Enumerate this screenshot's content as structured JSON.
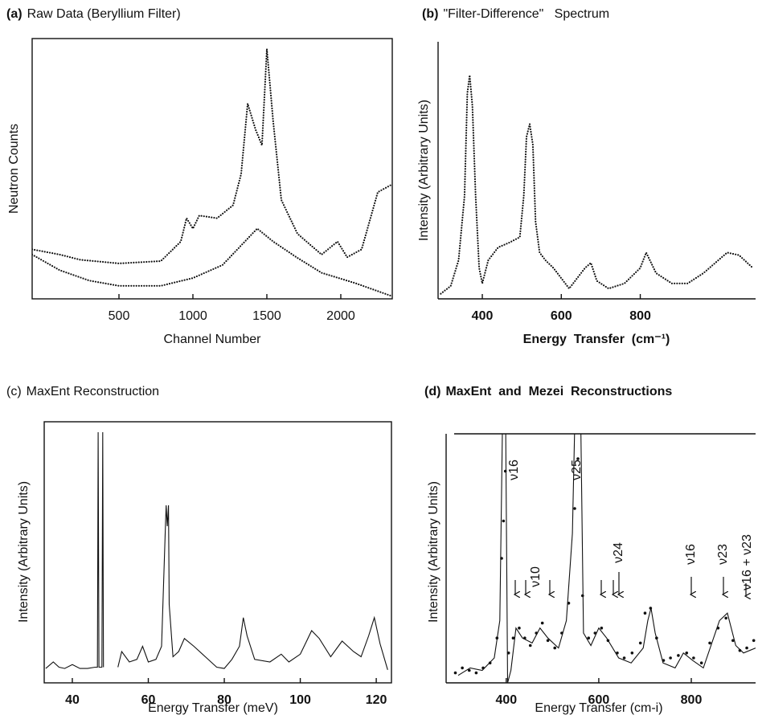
{
  "chart_data": [
    {
      "type": "line",
      "label": "(a)",
      "title": "Raw Data (Beryllium Filter)",
      "ylabel": "Neutron Counts",
      "xlabel": "Channel Number",
      "xlim": [
        -87,
        2348
      ],
      "ylim": [
        0,
        100
      ],
      "xticks": [
        500,
        1000,
        1500,
        2000
      ],
      "series": [
        {
          "color": "#111111",
          "style": "dotted",
          "x": [
            -87,
            100,
            239,
            500,
            783,
            918,
            957,
            1000,
            1043,
            1163,
            1272,
            1326,
            1370,
            1424,
            1467,
            1500,
            1543,
            1598,
            1707,
            1870,
            1978,
            2043,
            2141,
            2250,
            2348
          ],
          "values": [
            19,
            17,
            15,
            13.6,
            14.5,
            22,
            31,
            27,
            32,
            31,
            36,
            48,
            75,
            65,
            59,
            96,
            68,
            38,
            25,
            17,
            22,
            16,
            19,
            41,
            44
          ]
        },
        {
          "color": "#111111",
          "style": "dotted",
          "x": [
            -87,
            100,
            300,
            500,
            783,
            1000,
            1200,
            1435,
            1543,
            1700,
            1870,
            2100,
            2348
          ],
          "values": [
            17,
            11,
            7,
            5,
            5,
            8,
            13,
            27,
            22,
            16,
            10,
            6,
            1
          ]
        }
      ]
    },
    {
      "type": "line",
      "label": "(b)",
      "title": "\"Filter-Difference\"   Spectrum",
      "ylabel": "Intensity (Arbitrary Units)",
      "xlabel": "Energy  Transfer  (cm⁻¹)",
      "xlim": [
        288,
        1092
      ],
      "ylim": [
        0,
        100
      ],
      "xticks": [
        400,
        600,
        800
      ],
      "series": [
        {
          "color": "#111111",
          "style": "dotted",
          "x": [
            295,
            320,
            340,
            355,
            362,
            368,
            375,
            383,
            392,
            400,
            415,
            440,
            470,
            495,
            505,
            512,
            520,
            528,
            535,
            545,
            560,
            580,
            620,
            660,
            675,
            690,
            720,
            760,
            800,
            815,
            840,
            880,
            920,
            960,
            990,
            1020,
            1050,
            1085
          ],
          "values": [
            2,
            5,
            15,
            40,
            80,
            87,
            75,
            40,
            12,
            6,
            15,
            20,
            22,
            24,
            40,
            63,
            68,
            60,
            30,
            18,
            15,
            12,
            4,
            12,
            14,
            7,
            4,
            6,
            12,
            18,
            10,
            6,
            6,
            10,
            14,
            18,
            17,
            12
          ]
        }
      ]
    },
    {
      "type": "line",
      "label": "(c)",
      "title": "MaxEnt Reconstruction",
      "ylabel": "Intensity (Arbitrary Units)",
      "xlabel": "Energy Transfer (meV)",
      "xlim": [
        32.6,
        124
      ],
      "ylim": [
        0,
        100
      ],
      "xticks": [
        40,
        60,
        80,
        100,
        120
      ],
      "series": [
        {
          "color": "#111111",
          "style": "solid",
          "x": [
            33,
            35,
            36.5,
            38,
            40,
            42,
            44,
            46,
            46.6,
            46.8,
            47,
            47.8,
            48,
            48.2,
            50,
            52,
            53,
            55,
            57,
            58.5,
            60,
            62,
            63.5,
            64.5,
            64.7,
            65,
            65.3,
            65.5,
            66.5,
            68,
            69.5,
            72,
            75,
            78,
            80,
            82,
            84,
            85,
            86,
            88,
            92,
            95,
            97,
            100,
            103,
            105,
            108,
            111,
            114,
            116,
            118,
            119.5,
            121,
            123
          ],
          "values": [
            5.5,
            8,
            6,
            5.5,
            7,
            5.5,
            5.5,
            6,
            6,
            96,
            6,
            6,
            96,
            6,
            null,
            6,
            12,
            8,
            9,
            14,
            8,
            9,
            14,
            60,
            68,
            60,
            68,
            30,
            10,
            12,
            17,
            14,
            10,
            6,
            5.5,
            9,
            14,
            25,
            18,
            9,
            8,
            11,
            8,
            11,
            20,
            17,
            10,
            16,
            12,
            10,
            18,
            25,
            15,
            5
          ]
        }
      ]
    },
    {
      "type": "line",
      "label": "(d)",
      "title": "MaxEnt  and  Mezei  Reconstructions",
      "ylabel": "Intensity (Arbitrary Units)",
      "xlabel": "Energy Transfer (cm-i)",
      "xlim": [
        270,
        939
      ],
      "ylim": [
        0,
        100
      ],
      "xticks": [
        400,
        600,
        800
      ],
      "annotations": [
        "ν16",
        "ν25",
        "ν10",
        "ν24",
        "ν16",
        "ν23",
        "ν16 + ν23"
      ],
      "series": [
        {
          "color": "#111111",
          "style": "solid",
          "x": [
            296,
            322,
            348,
            374,
            386,
            393,
            398,
            403,
            410,
            421,
            435,
            456,
            473,
            490,
            513,
            530,
            543,
            550,
            560,
            567,
            583,
            600,
            617,
            643,
            670,
            696,
            706,
            713,
            722,
            739,
            765,
            783,
            803,
            826,
            861,
            878,
            896,
            913,
            939
          ],
          "values": [
            3,
            6,
            5,
            10,
            25,
            120,
            120,
            0,
            5,
            22,
            18,
            16,
            22,
            18,
            14,
            25,
            60,
            120,
            120,
            20,
            15,
            22,
            18,
            10,
            8,
            14,
            25,
            30,
            20,
            8,
            6,
            12,
            9,
            6,
            25,
            28,
            15,
            12,
            14
          ]
        },
        {
          "color": "#111111",
          "style": "points",
          "x": [
            290,
            305,
            320,
            335,
            350,
            365,
            380,
            390,
            394,
            398,
            405,
            415,
            428,
            440,
            452,
            465,
            478,
            490,
            505,
            520,
            535,
            548,
            555,
            565,
            578,
            592,
            606,
            620,
            640,
            655,
            672,
            690,
            700,
            712,
            725,
            740,
            755,
            772,
            790,
            805,
            822,
            840,
            858,
            875,
            890,
            905,
            920,
            935
          ],
          "values": [
            4,
            6,
            5,
            4,
            6,
            8,
            18,
            50,
            65,
            85,
            12,
            18,
            22,
            18,
            15,
            20,
            24,
            17,
            14,
            20,
            32,
            70,
            90,
            35,
            18,
            20,
            22,
            17,
            12,
            10,
            12,
            16,
            28,
            30,
            18,
            9,
            10,
            11,
            12,
            10,
            8,
            16,
            22,
            26,
            17,
            13,
            14,
            17
          ]
        }
      ]
    }
  ]
}
